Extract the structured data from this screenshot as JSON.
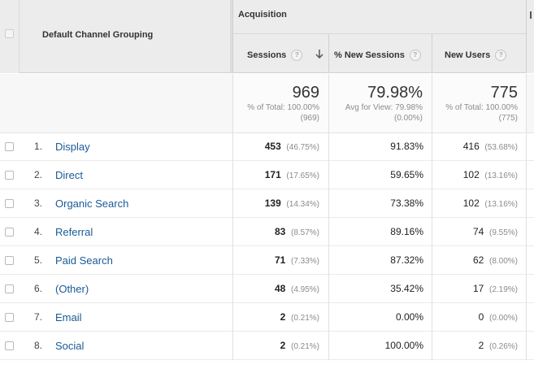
{
  "header": {
    "dimension_label": "Default Channel Grouping",
    "group_label": "Acquisition",
    "sort_arrow_icon": "arrow-down-icon",
    "columns": [
      {
        "label": "Sessions",
        "help": "?"
      },
      {
        "label": "% New Sessions",
        "help": "?"
      },
      {
        "label": "New Users",
        "help": "?"
      }
    ]
  },
  "totals": {
    "sessions": {
      "value": "969",
      "line1": "% of Total: 100.00%",
      "line2": "(969)"
    },
    "new_sessions": {
      "value": "79.98%",
      "line1": "Avg for View: 79.98%",
      "line2": "(0.00%)"
    },
    "new_users": {
      "value": "775",
      "line1": "% of Total: 100.00%",
      "line2": "(775)"
    }
  },
  "rows": [
    {
      "index": "1.",
      "channel": "Display",
      "sessions": "453",
      "sessions_pct": "(46.75%)",
      "new_sessions": "91.83%",
      "new_users": "416",
      "new_users_pct": "(53.68%)"
    },
    {
      "index": "2.",
      "channel": "Direct",
      "sessions": "171",
      "sessions_pct": "(17.65%)",
      "new_sessions": "59.65%",
      "new_users": "102",
      "new_users_pct": "(13.16%)"
    },
    {
      "index": "3.",
      "channel": "Organic Search",
      "sessions": "139",
      "sessions_pct": "(14.34%)",
      "new_sessions": "73.38%",
      "new_users": "102",
      "new_users_pct": "(13.16%)"
    },
    {
      "index": "4.",
      "channel": "Referral",
      "sessions": "83",
      "sessions_pct": "(8.57%)",
      "new_sessions": "89.16%",
      "new_users": "74",
      "new_users_pct": "(9.55%)"
    },
    {
      "index": "5.",
      "channel": "Paid Search",
      "sessions": "71",
      "sessions_pct": "(7.33%)",
      "new_sessions": "87.32%",
      "new_users": "62",
      "new_users_pct": "(8.00%)"
    },
    {
      "index": "6.",
      "channel": "(Other)",
      "sessions": "48",
      "sessions_pct": "(4.95%)",
      "new_sessions": "35.42%",
      "new_users": "17",
      "new_users_pct": "(2.19%)"
    },
    {
      "index": "7.",
      "channel": "Email",
      "sessions": "2",
      "sessions_pct": "(0.21%)",
      "new_sessions": "0.00%",
      "new_users": "0",
      "new_users_pct": "(0.00%)"
    },
    {
      "index": "8.",
      "channel": "Social",
      "sessions": "2",
      "sessions_pct": "(0.21%)",
      "new_sessions": "100.00%",
      "new_users": "2",
      "new_users_pct": "(0.26%)"
    }
  ]
}
